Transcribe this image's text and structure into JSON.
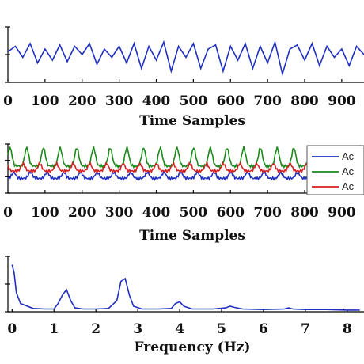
{
  "chart_data": [
    {
      "type": "line",
      "xlabel": "Time Samples",
      "ylabel": "",
      "xlim": [
        0,
        960
      ],
      "ylim": [
        -1,
        1
      ],
      "x_ticks": [
        "0",
        "100",
        "200",
        "300",
        "400",
        "500",
        "600",
        "700",
        "800",
        "900"
      ],
      "series": [
        {
          "color": "#1f2fbf",
          "x": [
            0,
            20,
            40,
            60,
            80,
            100,
            120,
            140,
            160,
            180,
            200,
            220,
            240,
            260,
            280,
            300,
            320,
            340,
            360,
            380,
            400,
            420,
            440,
            460,
            480,
            500,
            520,
            540,
            560,
            580,
            600,
            620,
            640,
            660,
            680,
            700,
            720,
            740,
            760,
            780,
            800,
            820,
            840,
            860,
            880,
            900,
            920,
            940,
            960
          ],
          "values": [
            0.1,
            0.3,
            -0.1,
            0.4,
            -0.3,
            0.2,
            -0.2,
            0.35,
            -0.25,
            0.3,
            0.0,
            0.4,
            -0.35,
            0.2,
            -0.1,
            0.3,
            -0.3,
            0.4,
            -0.5,
            0.3,
            -0.2,
            0.45,
            -0.6,
            0.3,
            -0.1,
            0.4,
            -0.5,
            0.2,
            0.35,
            -0.6,
            0.3,
            -0.2,
            0.4,
            -0.5,
            0.3,
            -0.3,
            0.45,
            -0.7,
            0.2,
            0.35,
            -0.2,
            0.4,
            -0.4,
            0.3,
            -0.1,
            0.2,
            -0.4,
            0.3,
            0.0
          ]
        }
      ]
    },
    {
      "type": "line",
      "xlabel": "Time Samples",
      "ylabel": "",
      "xlim": [
        0,
        960
      ],
      "ylim": [
        -1,
        1
      ],
      "x_ticks": [
        "0",
        "100",
        "200",
        "300",
        "400",
        "500",
        "600",
        "700",
        "800",
        "900"
      ],
      "legend": {
        "position": "top-right",
        "entries": [
          "Ac",
          "Ac",
          "Ac"
        ]
      },
      "series": [
        {
          "color": "#1f2fbf",
          "period": 45,
          "baseline": -0.4,
          "amplitude": 0.25
        },
        {
          "color": "#1a8a1a",
          "period": 45,
          "baseline": 0.1,
          "amplitude": 0.75
        },
        {
          "color": "#d42020",
          "period": 45,
          "baseline": -0.1,
          "amplitude": 0.3
        }
      ]
    },
    {
      "type": "line",
      "xlabel": "Frequency (Hz)",
      "ylabel": "",
      "xlim": [
        -0.1,
        8.4
      ],
      "ylim": [
        0,
        1
      ],
      "x_ticks": [
        "0",
        "1",
        "2",
        "3",
        "4",
        "5",
        "6",
        "7",
        "8"
      ],
      "series": [
        {
          "color": "#1f2fbf",
          "x": [
            0,
            0.05,
            0.1,
            0.2,
            0.3,
            0.5,
            0.8,
            1.0,
            1.1,
            1.2,
            1.3,
            1.4,
            1.5,
            1.7,
            2.0,
            2.3,
            2.5,
            2.6,
            2.7,
            2.8,
            2.9,
            3.1,
            3.5,
            3.8,
            3.9,
            4.0,
            4.1,
            4.3,
            4.8,
            5.1,
            5.2,
            5.3,
            5.5,
            6.0,
            6.5,
            6.6,
            6.7,
            7.0,
            7.5,
            8.0,
            8.3
          ],
          "values": [
            0.85,
            0.7,
            0.35,
            0.15,
            0.12,
            0.06,
            0.05,
            0.05,
            0.15,
            0.3,
            0.4,
            0.2,
            0.07,
            0.05,
            0.05,
            0.06,
            0.2,
            0.55,
            0.6,
            0.3,
            0.1,
            0.05,
            0.05,
            0.06,
            0.15,
            0.18,
            0.1,
            0.05,
            0.05,
            0.07,
            0.1,
            0.08,
            0.05,
            0.04,
            0.05,
            0.07,
            0.05,
            0.04,
            0.04,
            0.03,
            0.03
          ]
        }
      ]
    }
  ]
}
